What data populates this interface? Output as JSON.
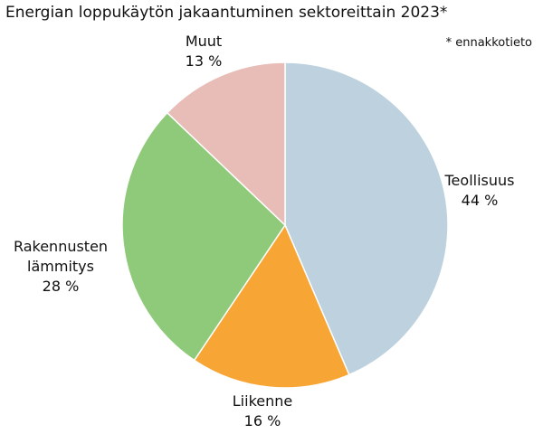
{
  "chart_data": {
    "type": "pie",
    "title": "Energian loppukäytön jakaantuminen sektoreittain 2023*",
    "note": "* ennakkotieto",
    "categories": [
      "Teollisuus",
      "Liikenne",
      "Rakennusten lämmitys",
      "Muut"
    ],
    "values": [
      44,
      16,
      28,
      13
    ],
    "value_labels": [
      "44 %",
      "16 %",
      "28 %",
      "13 %"
    ],
    "colors": [
      "#bdd1de",
      "#f7a535",
      "#8fc97a",
      "#e8bcb7"
    ]
  }
}
